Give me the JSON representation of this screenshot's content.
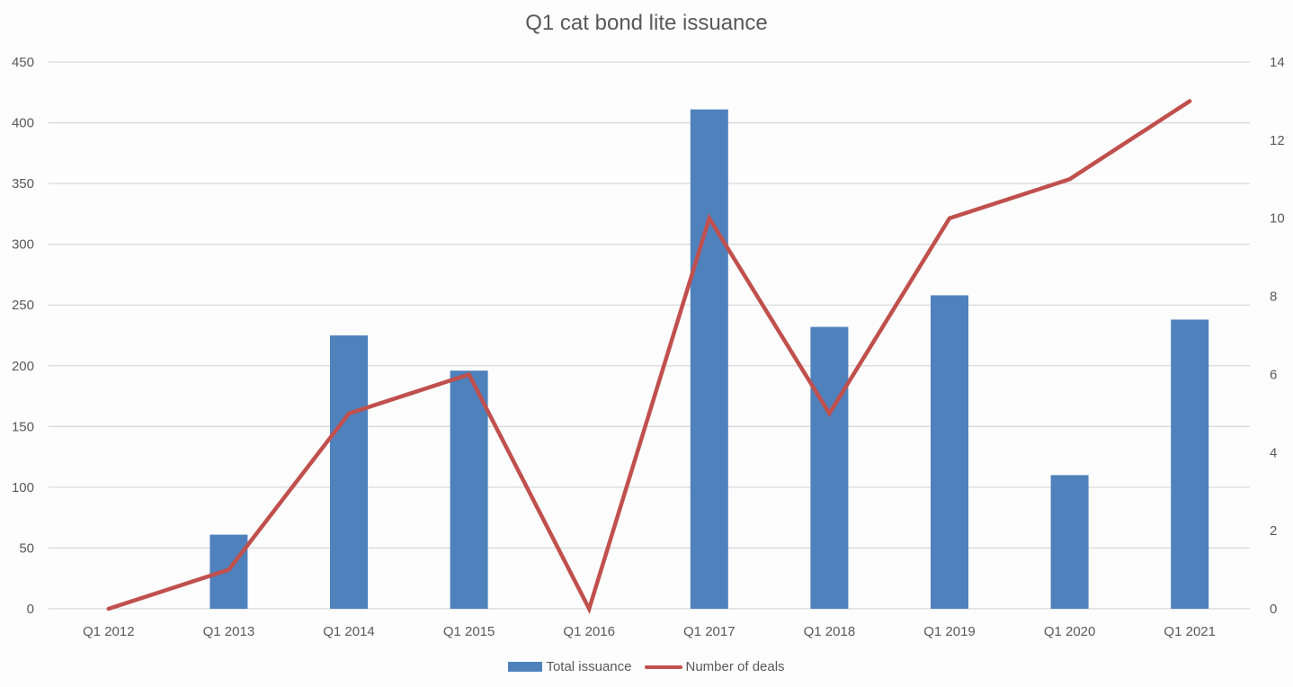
{
  "chart_data": {
    "type": "bar",
    "title": "Q1 cat bond lite issuance",
    "categories": [
      "Q1 2012",
      "Q1 2013",
      "Q1 2014",
      "Q1 2015",
      "Q1 2016",
      "Q1 2017",
      "Q1 2018",
      "Q1 2019",
      "Q1 2020",
      "Q1 2021"
    ],
    "series": [
      {
        "name": "Total issuance",
        "type": "bar",
        "axis": "left",
        "color": "#4f81bd",
        "values": [
          0,
          61,
          225,
          196,
          0,
          411,
          232,
          258,
          110,
          238
        ]
      },
      {
        "name": "Number of deals",
        "type": "line",
        "axis": "right",
        "color": "#c0504d",
        "values": [
          0,
          1,
          5,
          6,
          0,
          10,
          5,
          10,
          11,
          13
        ]
      }
    ],
    "xlabel": "",
    "ylabel": "",
    "ylim": [
      0,
      450
    ],
    "y_ticks": [
      0,
      50,
      100,
      150,
      200,
      250,
      300,
      350,
      400,
      450
    ],
    "y2lim": [
      0,
      14
    ],
    "y2_ticks": [
      0,
      2,
      4,
      6,
      8,
      10,
      12,
      14
    ],
    "grid": true,
    "legend_position": "bottom"
  }
}
